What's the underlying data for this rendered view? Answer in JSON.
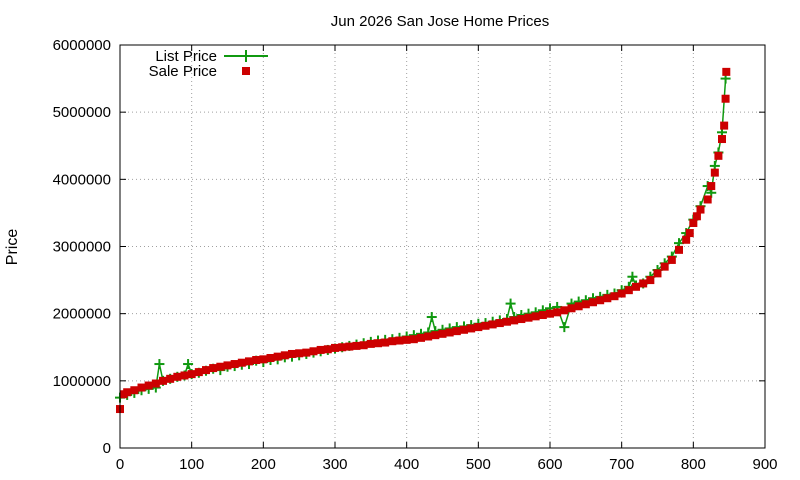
{
  "chart_data": {
    "type": "scatter",
    "title": "Jun 2026 San Jose Home Prices",
    "xlabel": "",
    "ylabel": "Price",
    "xlim": [
      0,
      900
    ],
    "ylim": [
      0,
      6000000
    ],
    "x_ticks": [
      0,
      100,
      200,
      300,
      400,
      500,
      600,
      700,
      800,
      900
    ],
    "y_ticks": [
      0,
      1000000,
      2000000,
      3000000,
      4000000,
      5000000,
      6000000
    ],
    "grid": true,
    "legend_position": "top-left",
    "colors": {
      "list": "#109910",
      "sale": "#cc0000"
    },
    "series": [
      {
        "name": "List Price",
        "style": "line-with-plus-markers",
        "x": [
          0,
          10,
          20,
          30,
          40,
          50,
          55,
          60,
          70,
          80,
          90,
          95,
          100,
          110,
          120,
          130,
          140,
          150,
          160,
          170,
          180,
          190,
          200,
          210,
          220,
          230,
          240,
          250,
          260,
          270,
          280,
          290,
          300,
          310,
          320,
          330,
          340,
          350,
          360,
          370,
          380,
          390,
          400,
          410,
          420,
          430,
          435,
          440,
          450,
          460,
          470,
          480,
          490,
          500,
          510,
          520,
          530,
          540,
          545,
          550,
          560,
          570,
          580,
          590,
          600,
          610,
          620,
          630,
          640,
          650,
          660,
          670,
          680,
          690,
          700,
          710,
          715,
          720,
          730,
          740,
          750,
          760,
          770,
          780,
          790,
          800,
          810,
          820,
          825,
          830,
          835,
          840,
          845
        ],
        "values": [
          750000,
          790000,
          820000,
          860000,
          880000,
          900000,
          1250000,
          1000000,
          1030000,
          1060000,
          1080000,
          1250000,
          1100000,
          1120000,
          1150000,
          1180000,
          1160000,
          1210000,
          1220000,
          1240000,
          1250000,
          1300000,
          1280000,
          1310000,
          1320000,
          1350000,
          1360000,
          1380000,
          1400000,
          1420000,
          1440000,
          1460000,
          1480000,
          1500000,
          1520000,
          1540000,
          1560000,
          1580000,
          1600000,
          1610000,
          1620000,
          1640000,
          1660000,
          1680000,
          1700000,
          1720000,
          1950000,
          1740000,
          1760000,
          1780000,
          1800000,
          1810000,
          1830000,
          1850000,
          1860000,
          1880000,
          1900000,
          1920000,
          2150000,
          1950000,
          1980000,
          2000000,
          2020000,
          2050000,
          2080000,
          2100000,
          1800000,
          2150000,
          2180000,
          2200000,
          2230000,
          2250000,
          2280000,
          2300000,
          2350000,
          2400000,
          2550000,
          2420000,
          2450000,
          2550000,
          2650000,
          2750000,
          2850000,
          3050000,
          3200000,
          3400000,
          3600000,
          3900000,
          3800000,
          4200000,
          4400000,
          4700000,
          5500000
        ]
      },
      {
        "name": "Sale Price",
        "style": "square-markers",
        "x": [
          0,
          5,
          10,
          20,
          30,
          40,
          50,
          60,
          70,
          80,
          90,
          100,
          110,
          120,
          130,
          140,
          150,
          160,
          170,
          180,
          190,
          200,
          210,
          220,
          230,
          240,
          250,
          260,
          270,
          280,
          290,
          300,
          310,
          320,
          330,
          340,
          350,
          360,
          370,
          380,
          390,
          400,
          410,
          420,
          430,
          440,
          450,
          460,
          470,
          480,
          490,
          500,
          510,
          520,
          530,
          540,
          550,
          560,
          570,
          580,
          590,
          600,
          610,
          620,
          630,
          640,
          650,
          660,
          670,
          680,
          690,
          700,
          710,
          720,
          730,
          740,
          750,
          760,
          770,
          780,
          790,
          795,
          800,
          805,
          810,
          820,
          825,
          830,
          835,
          840,
          843,
          845,
          846
        ],
        "values": [
          580000,
          800000,
          830000,
          860000,
          900000,
          930000,
          960000,
          1000000,
          1030000,
          1060000,
          1080000,
          1100000,
          1130000,
          1160000,
          1190000,
          1210000,
          1230000,
          1250000,
          1270000,
          1290000,
          1310000,
          1320000,
          1340000,
          1360000,
          1380000,
          1400000,
          1410000,
          1420000,
          1440000,
          1460000,
          1470000,
          1490000,
          1500000,
          1510000,
          1520000,
          1530000,
          1550000,
          1560000,
          1570000,
          1590000,
          1600000,
          1610000,
          1620000,
          1640000,
          1660000,
          1680000,
          1700000,
          1720000,
          1740000,
          1760000,
          1780000,
          1800000,
          1820000,
          1840000,
          1860000,
          1880000,
          1900000,
          1920000,
          1940000,
          1960000,
          1980000,
          2000000,
          2020000,
          2050000,
          2080000,
          2110000,
          2140000,
          2170000,
          2200000,
          2230000,
          2260000,
          2300000,
          2350000,
          2400000,
          2450000,
          2500000,
          2600000,
          2700000,
          2800000,
          2950000,
          3100000,
          3200000,
          3350000,
          3450000,
          3550000,
          3700000,
          3900000,
          4100000,
          4350000,
          4600000,
          4800000,
          5200000,
          5600000
        ]
      }
    ]
  }
}
